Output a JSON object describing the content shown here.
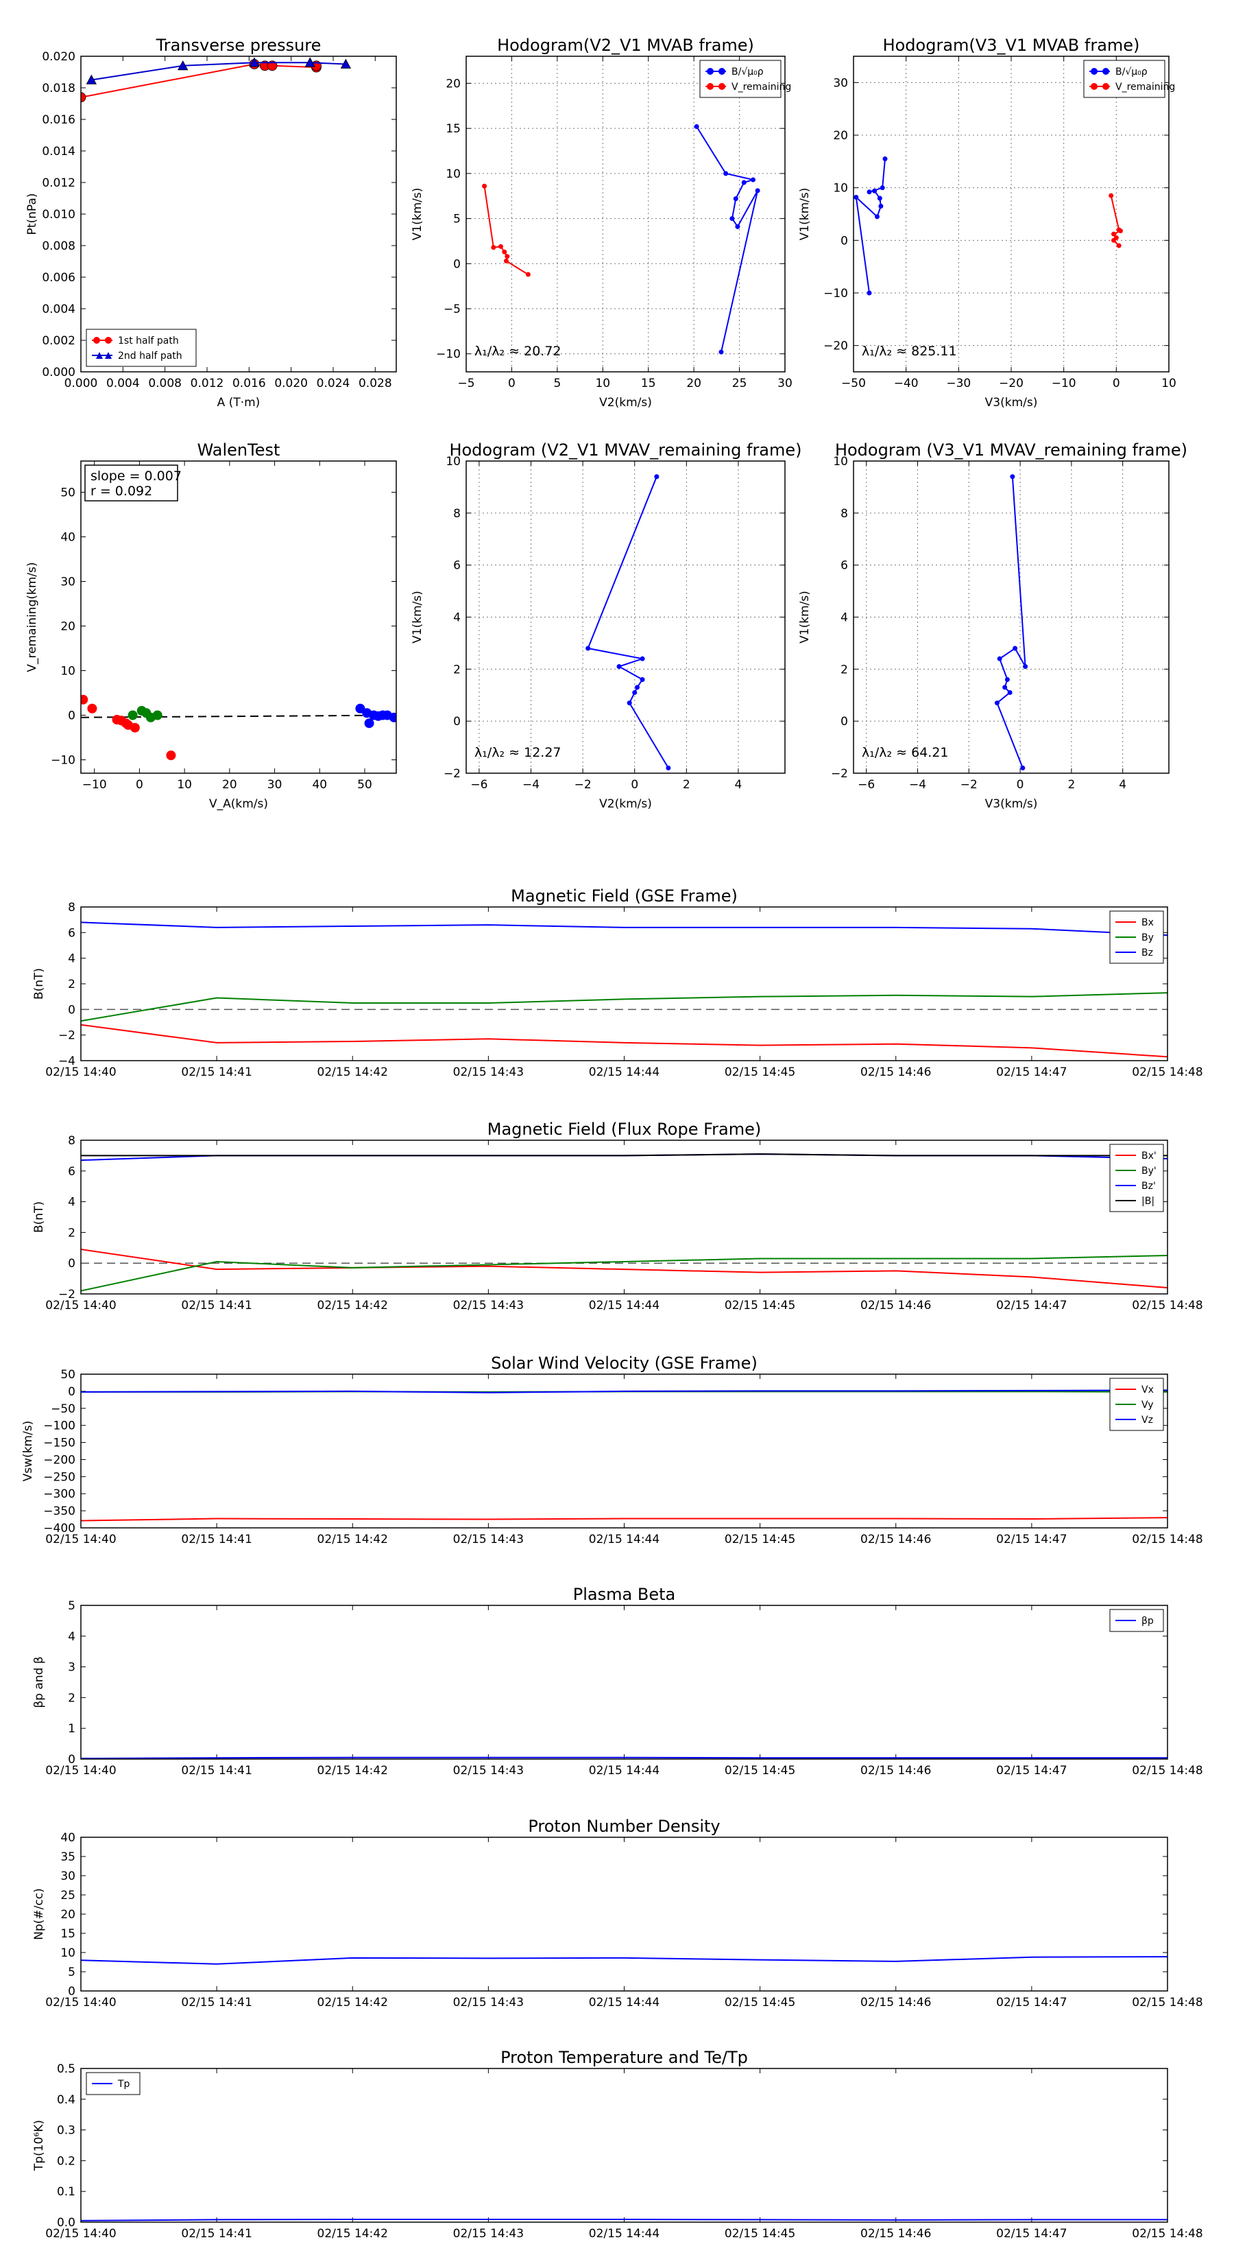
{
  "chart_data": [
    {
      "type": "scatter",
      "title": "Transverse pressure",
      "xlabel": "A (T·m)",
      "ylabel": "Pt(nPa)",
      "xlim": [
        0.0,
        0.03
      ],
      "ylim": [
        0.0,
        0.02
      ],
      "xticks": [
        "0.000",
        "0.004",
        "0.008",
        "0.012",
        "0.016",
        "0.020",
        "0.024",
        "0.028"
      ],
      "xtick_values": [
        0.0,
        0.004,
        0.008,
        0.012,
        0.016,
        0.02,
        0.024,
        0.028
      ],
      "yticks": [
        "0.000",
        "0.002",
        "0.004",
        "0.006",
        "0.008",
        "0.010",
        "0.012",
        "0.014",
        "0.016",
        "0.018",
        "0.020"
      ],
      "ytick_values": [
        0.0,
        0.002,
        0.004,
        0.006,
        0.008,
        0.01,
        0.012,
        0.014,
        0.016,
        0.018,
        0.02
      ],
      "grid": false,
      "legend_loc": "lower-left",
      "series": [
        {
          "name": "1st half path",
          "color": "#ff0000",
          "marker": "circle",
          "x": [
            0.0,
            0.0165,
            0.0175,
            0.0182,
            0.0224,
            0.0224
          ],
          "y": [
            0.0174,
            0.0195,
            0.0194,
            0.0194,
            0.0193,
            0.0194
          ]
        },
        {
          "name": "2nd half path",
          "color": "#0000cc",
          "marker": "triangle",
          "x": [
            0.0252,
            0.0218,
            0.0165,
            0.0097,
            0.001
          ],
          "y": [
            0.0195,
            0.0196,
            0.0196,
            0.0194,
            0.0185
          ]
        }
      ]
    },
    {
      "type": "line",
      "title": "Hodogram(V2_V1 MVAB frame)",
      "xlabel": "V2(km/s)",
      "ylabel": "V1(km/s)",
      "xlim": [
        -5,
        30
      ],
      "ylim": [
        -12,
        23
      ],
      "xticks": [
        "−5",
        "0",
        "5",
        "10",
        "15",
        "20",
        "25",
        "30"
      ],
      "xtick_values": [
        -5,
        0,
        5,
        10,
        15,
        20,
        25,
        30
      ],
      "yticks": [
        "−10",
        "−5",
        "0",
        "5",
        "10",
        "15",
        "20"
      ],
      "ytick_values": [
        -10,
        -5,
        0,
        5,
        10,
        15,
        20
      ],
      "grid": true,
      "legend_loc": "top-right",
      "annotation": "λ₁/λ₂ ≈ 20.72",
      "series": [
        {
          "name": "B/√μ₀ρ",
          "color": "#0000ff",
          "x": [
            20.3,
            23.5,
            26.5,
            25.5,
            24.6,
            24.2,
            24.8,
            27.0,
            23.0
          ],
          "y": [
            15.2,
            10.0,
            9.3,
            9.0,
            7.2,
            5.0,
            4.1,
            8.1,
            -9.8
          ]
        },
        {
          "name": "V_remaining",
          "color": "#ff0000",
          "x": [
            -3.0,
            -2.0,
            -1.2,
            -0.8,
            -0.5,
            -0.6,
            1.8
          ],
          "y": [
            8.6,
            1.8,
            1.9,
            1.3,
            0.8,
            0.3,
            -1.2
          ]
        }
      ]
    },
    {
      "type": "line",
      "title": "Hodogram(V3_V1 MVAB frame)",
      "xlabel": "V3(km/s)",
      "ylabel": "V1(km/s)",
      "xlim": [
        -50,
        10
      ],
      "ylim": [
        -25,
        35
      ],
      "xticks": [
        "−50",
        "−40",
        "−30",
        "−20",
        "−10",
        "0",
        "10"
      ],
      "xtick_values": [
        -50,
        -40,
        -30,
        -20,
        -10,
        0,
        10
      ],
      "yticks": [
        "−20",
        "−10",
        "0",
        "10",
        "20",
        "30"
      ],
      "ytick_values": [
        -20,
        -10,
        0,
        10,
        20,
        30
      ],
      "grid": true,
      "legend_loc": "top-right",
      "annotation": "λ₁/λ₂ ≈ 825.11",
      "series": [
        {
          "name": "B/√μ₀ρ",
          "color": "#0000ff",
          "x": [
            -44.0,
            -44.5,
            -47.0,
            -46.0,
            -45.0,
            -44.8,
            -45.5,
            -49.5,
            -47.0
          ],
          "y": [
            15.5,
            10.0,
            9.2,
            9.4,
            8.0,
            6.5,
            4.5,
            8.2,
            -10.0
          ]
        },
        {
          "name": "V_remaining",
          "color": "#ff0000",
          "x": [
            -1.0,
            0.5,
            0.8,
            -0.5,
            0.0,
            -0.5,
            0.5
          ],
          "y": [
            8.5,
            2.0,
            1.8,
            1.2,
            0.5,
            0.0,
            -1.0
          ]
        }
      ]
    },
    {
      "type": "scatter",
      "title": "WalenTest",
      "xlabel": "V_A(km/s)",
      "ylabel": "V_remaining(km/s)",
      "xlim": [
        -13,
        57
      ],
      "ylim": [
        -13,
        57
      ],
      "xticks": [
        "−10",
        "0",
        "10",
        "20",
        "30",
        "40",
        "50"
      ],
      "xtick_values": [
        -10,
        0,
        10,
        20,
        30,
        40,
        50
      ],
      "yticks": [
        "−10",
        "0",
        "10",
        "20",
        "30",
        "40",
        "50"
      ],
      "ytick_values": [
        -10,
        0,
        10,
        20,
        30,
        40,
        50
      ],
      "grid": false,
      "annotation_lines": [
        "slope = 0.007",
        "r = 0.092"
      ],
      "fit_line": {
        "slope": 0.007,
        "intercept": -0.4,
        "style": "dashed"
      },
      "series": [
        {
          "name": "",
          "color": "#ff0000",
          "x": [
            -12.5,
            -10.5,
            -5.0,
            -4.0,
            -3.0,
            -2.5,
            -1.0,
            7.0
          ],
          "y": [
            3.5,
            1.5,
            -1.0,
            -1.2,
            -1.8,
            -2.2,
            -2.8,
            -9.0
          ]
        },
        {
          "name": "",
          "color": "#008000",
          "x": [
            -1.5,
            0.5,
            1.5,
            2.5,
            4.0
          ],
          "y": [
            0.0,
            1.0,
            0.5,
            -0.5,
            0.0
          ]
        },
        {
          "name": "",
          "color": "#0000ff",
          "x": [
            49.0,
            50.5,
            51.0,
            52.0,
            53.0,
            54.0,
            55.0,
            56.5
          ],
          "y": [
            1.5,
            0.5,
            -1.8,
            0.0,
            -0.2,
            0.0,
            0.0,
            -0.5
          ]
        }
      ]
    },
    {
      "type": "line",
      "title": "Hodogram (V2_V1 MVAV_remaining frame)",
      "xlabel": "V2(km/s)",
      "ylabel": "V1(km/s)",
      "xlim": [
        -6.5,
        5.8
      ],
      "ylim": [
        -2,
        10
      ],
      "xticks": [
        "−6",
        "−4",
        "−2",
        "0",
        "2",
        "4"
      ],
      "xtick_values": [
        -6,
        -4,
        -2,
        0,
        2,
        4
      ],
      "yticks": [
        "−2",
        "0",
        "2",
        "4",
        "6",
        "8",
        "10"
      ],
      "ytick_values": [
        -2,
        0,
        2,
        4,
        6,
        8,
        10
      ],
      "grid": true,
      "annotation": "λ₁/λ₂ ≈ 12.27",
      "series": [
        {
          "name": "",
          "color": "#0000ff",
          "x": [
            0.85,
            -1.8,
            0.3,
            -0.6,
            0.3,
            0.1,
            0.0,
            -0.2,
            1.3
          ],
          "y": [
            9.4,
            2.8,
            2.4,
            2.1,
            1.6,
            1.3,
            1.1,
            0.7,
            -1.8
          ]
        }
      ]
    },
    {
      "type": "line",
      "title": "Hodogram (V3_V1 MVAV_remaining frame)",
      "xlabel": "V3(km/s)",
      "ylabel": "V1(km/s)",
      "xlim": [
        -6.5,
        5.8
      ],
      "ylim": [
        -2,
        10
      ],
      "xticks": [
        "−6",
        "−4",
        "−2",
        "0",
        "2",
        "4"
      ],
      "xtick_values": [
        -6,
        -4,
        -2,
        0,
        2,
        4
      ],
      "yticks": [
        "−2",
        "0",
        "2",
        "4",
        "6",
        "8",
        "10"
      ],
      "ytick_values": [
        -2,
        0,
        2,
        4,
        6,
        8,
        10
      ],
      "grid": true,
      "annotation": "λ₁/λ₂ ≈ 64.21",
      "series": [
        {
          "name": "",
          "color": "#0000ff",
          "x": [
            -0.3,
            0.2,
            -0.2,
            -0.8,
            -0.5,
            -0.6,
            -0.4,
            -0.9,
            0.1
          ],
          "y": [
            9.4,
            2.1,
            2.8,
            2.4,
            1.6,
            1.3,
            1.1,
            0.7,
            -1.8
          ]
        }
      ]
    },
    {
      "type": "line",
      "title": "Magnetic Field (GSE Frame)",
      "xlabel": "",
      "ylabel": "B(nT)",
      "ylim": [
        -4,
        8
      ],
      "yticks": [
        "−4",
        "−2",
        "0",
        "2",
        "4",
        "6",
        "8"
      ],
      "ytick_values": [
        -4,
        -2,
        0,
        2,
        4,
        6,
        8
      ],
      "x": [
        "02/15 14:40",
        "02/15 14:41",
        "02/15 14:42",
        "02/15 14:43",
        "02/15 14:44",
        "02/15 14:45",
        "02/15 14:46",
        "02/15 14:47",
        "02/15 14:48"
      ],
      "zero_line": true,
      "legend_loc": "top-right",
      "series": [
        {
          "name": "Bx",
          "color": "#ff0000",
          "values": [
            -1.2,
            -2.6,
            -2.5,
            -2.3,
            -2.6,
            -2.8,
            -2.7,
            -3.0,
            -3.7
          ]
        },
        {
          "name": "By",
          "color": "#008000",
          "values": [
            -0.9,
            0.9,
            0.5,
            0.5,
            0.8,
            1.0,
            1.1,
            1.0,
            1.3
          ]
        },
        {
          "name": "Bz",
          "color": "#0000ff",
          "values": [
            6.8,
            6.4,
            6.5,
            6.6,
            6.4,
            6.4,
            6.4,
            6.3,
            5.8
          ]
        }
      ]
    },
    {
      "type": "line",
      "title": "Magnetic Field (Flux Rope Frame)",
      "xlabel": "",
      "ylabel": "B(nT)",
      "ylim": [
        -2,
        8
      ],
      "yticks": [
        "−2",
        "0",
        "2",
        "4",
        "6",
        "8"
      ],
      "ytick_values": [
        -2,
        0,
        2,
        4,
        6,
        8
      ],
      "x": [
        "02/15 14:40",
        "02/15 14:41",
        "02/15 14:42",
        "02/15 14:43",
        "02/15 14:44",
        "02/15 14:45",
        "02/15 14:46",
        "02/15 14:47",
        "02/15 14:48"
      ],
      "zero_line": true,
      "legend_loc": "top-right",
      "series": [
        {
          "name": "Bx'",
          "color": "#ff0000",
          "values": [
            0.9,
            -0.4,
            -0.3,
            -0.2,
            -0.4,
            -0.6,
            -0.5,
            -0.9,
            -1.6
          ]
        },
        {
          "name": "By'",
          "color": "#008000",
          "values": [
            -1.8,
            0.1,
            -0.3,
            -0.1,
            0.1,
            0.3,
            0.3,
            0.3,
            0.5
          ]
        },
        {
          "name": "Bz'",
          "color": "#0000ff",
          "values": [
            6.7,
            7.0,
            7.0,
            7.0,
            7.0,
            7.1,
            7.0,
            7.0,
            6.8
          ]
        },
        {
          "name": "|B|",
          "color": "#000000",
          "values": [
            7.0,
            7.0,
            7.0,
            7.0,
            7.0,
            7.1,
            7.0,
            7.0,
            7.0
          ]
        }
      ]
    },
    {
      "type": "line",
      "title": "Solar Wind Velocity (GSE Frame)",
      "xlabel": "",
      "ylabel": "Vsw(km/s)",
      "ylim": [
        -400,
        50
      ],
      "yticks": [
        "−400",
        "−350",
        "−300",
        "−250",
        "−200",
        "−150",
        "−100",
        "−50",
        "0",
        "50"
      ],
      "ytick_values": [
        -400,
        -350,
        -300,
        -250,
        -200,
        -150,
        -100,
        -50,
        0,
        50
      ],
      "x": [
        "02/15 14:40",
        "02/15 14:41",
        "02/15 14:42",
        "02/15 14:43",
        "02/15 14:44",
        "02/15 14:45",
        "02/15 14:46",
        "02/15 14:47",
        "02/15 14:48"
      ],
      "legend_loc": "top-right",
      "series": [
        {
          "name": "Vx",
          "color": "#ff0000",
          "values": [
            -379,
            -373,
            -374,
            -375,
            -373,
            -373,
            -373,
            -374,
            -370
          ]
        },
        {
          "name": "Vy",
          "color": "#008000",
          "values": [
            -2,
            -2,
            -1,
            -2,
            -1,
            -1,
            -1,
            -1,
            -2
          ]
        },
        {
          "name": "Vz",
          "color": "#0000ff",
          "values": [
            -2,
            -1,
            0,
            -4,
            0,
            1,
            1,
            2,
            3
          ]
        }
      ]
    },
    {
      "type": "line",
      "title": "Plasma Beta",
      "xlabel": "",
      "ylabel": "βp and β",
      "ylim": [
        0,
        5
      ],
      "yticks": [
        "0",
        "1",
        "2",
        "3",
        "4",
        "5"
      ],
      "ytick_values": [
        0,
        1,
        2,
        3,
        4,
        5
      ],
      "x": [
        "02/15 14:40",
        "02/15 14:41",
        "02/15 14:42",
        "02/15 14:43",
        "02/15 14:44",
        "02/15 14:45",
        "02/15 14:46",
        "02/15 14:47",
        "02/15 14:48"
      ],
      "legend_loc": "top-right",
      "series": [
        {
          "name": "βp",
          "color": "#0000ff",
          "values": [
            0.02,
            0.04,
            0.05,
            0.05,
            0.05,
            0.04,
            0.04,
            0.04,
            0.04
          ]
        }
      ]
    },
    {
      "type": "line",
      "title": "Proton Number Density",
      "xlabel": "",
      "ylabel": "Np(#/cc)",
      "ylim": [
        0,
        40
      ],
      "yticks": [
        "0",
        "5",
        "10",
        "15",
        "20",
        "25",
        "30",
        "35",
        "40"
      ],
      "ytick_values": [
        0,
        5,
        10,
        15,
        20,
        25,
        30,
        35,
        40
      ],
      "x": [
        "02/15 14:40",
        "02/15 14:41",
        "02/15 14:42",
        "02/15 14:43",
        "02/15 14:44",
        "02/15 14:45",
        "02/15 14:46",
        "02/15 14:47",
        "02/15 14:48"
      ],
      "series": [
        {
          "name": "",
          "color": "#0000ff",
          "values": [
            8.0,
            7.0,
            8.6,
            8.5,
            8.6,
            8.1,
            7.7,
            8.8,
            8.9
          ]
        }
      ]
    },
    {
      "type": "line",
      "title": "Proton Temperature and Te/Tp",
      "xlabel": "",
      "ylabel": "Tp(10⁶K)",
      "ylim": [
        0,
        0.5
      ],
      "yticks": [
        "0.0",
        "0.1",
        "0.2",
        "0.3",
        "0.4",
        "0.5"
      ],
      "ytick_values": [
        0,
        0.1,
        0.2,
        0.3,
        0.4,
        0.5
      ],
      "x": [
        "02/15 14:40",
        "02/15 14:41",
        "02/15 14:42",
        "02/15 14:43",
        "02/15 14:44",
        "02/15 14:45",
        "02/15 14:46",
        "02/15 14:47",
        "02/15 14:48"
      ],
      "legend_loc": "top-left",
      "series": [
        {
          "name": "Tp",
          "color": "#0000ff",
          "values": [
            0.005,
            0.008,
            0.009,
            0.009,
            0.009,
            0.008,
            0.007,
            0.008,
            0.008
          ]
        }
      ]
    }
  ]
}
